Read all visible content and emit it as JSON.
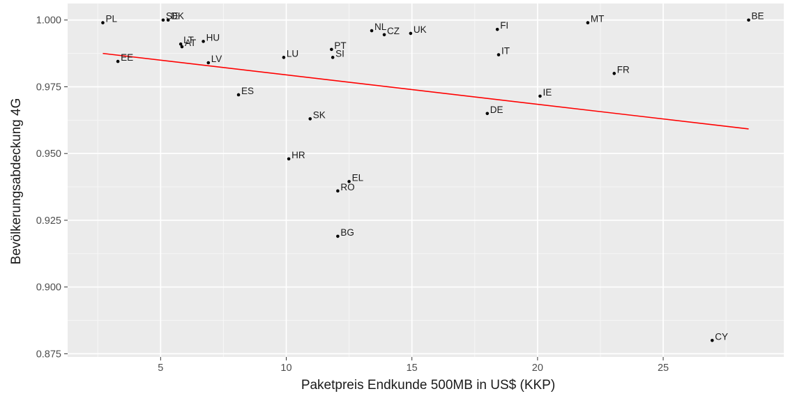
{
  "chart_data": {
    "type": "scatter",
    "xlabel": "Paketpreis Endkunde 500MB in US$ (KKP)",
    "ylabel": "Bevölkerungsabdeckung 4G",
    "xlim": [
      1.3,
      29.8
    ],
    "ylim": [
      0.8738,
      1.0062
    ],
    "x_ticks": [
      5,
      10,
      15,
      20,
      25
    ],
    "x_tick_labels": [
      "5",
      "10",
      "15",
      "20",
      "25"
    ],
    "y_ticks": [
      0.875,
      0.9,
      0.925,
      0.95,
      0.975,
      1.0
    ],
    "y_tick_labels": [
      "0.875",
      "0.900",
      "0.925",
      "0.950",
      "0.975",
      "1.000"
    ],
    "grid": true,
    "background_color": "#ebebeb",
    "trend_line_color": "#ff0000",
    "point_color": "#000000",
    "points": [
      {
        "label": "PL",
        "x": 2.7,
        "y": 0.999
      },
      {
        "label": "SE",
        "x": 5.1,
        "y": 1.0
      },
      {
        "label": "DK",
        "x": 5.3,
        "y": 1.0
      },
      {
        "label": "LT",
        "x": 5.8,
        "y": 0.991
      },
      {
        "label": "AT",
        "x": 5.85,
        "y": 0.99
      },
      {
        "label": "HU",
        "x": 6.7,
        "y": 0.992
      },
      {
        "label": "EE",
        "x": 3.3,
        "y": 0.9845
      },
      {
        "label": "LV",
        "x": 6.9,
        "y": 0.984
      },
      {
        "label": "LU",
        "x": 9.9,
        "y": 0.986
      },
      {
        "label": "ES",
        "x": 8.1,
        "y": 0.972
      },
      {
        "label": "SK",
        "x": 10.95,
        "y": 0.963
      },
      {
        "label": "HR",
        "x": 10.1,
        "y": 0.948
      },
      {
        "label": "PT",
        "x": 11.8,
        "y": 0.989
      },
      {
        "label": "SI",
        "x": 11.85,
        "y": 0.986
      },
      {
        "label": "NL",
        "x": 13.4,
        "y": 0.996
      },
      {
        "label": "CZ",
        "x": 13.9,
        "y": 0.9945
      },
      {
        "label": "UK",
        "x": 14.95,
        "y": 0.995
      },
      {
        "label": "EL",
        "x": 12.5,
        "y": 0.9395
      },
      {
        "label": "RO",
        "x": 12.05,
        "y": 0.936
      },
      {
        "label": "BG",
        "x": 12.05,
        "y": 0.919
      },
      {
        "label": "FI",
        "x": 18.4,
        "y": 0.9965
      },
      {
        "label": "IT",
        "x": 18.45,
        "y": 0.987
      },
      {
        "label": "DE",
        "x": 18.0,
        "y": 0.965
      },
      {
        "label": "IE",
        "x": 20.1,
        "y": 0.9715
      },
      {
        "label": "MT",
        "x": 22.0,
        "y": 0.999
      },
      {
        "label": "FR",
        "x": 23.05,
        "y": 0.98
      },
      {
        "label": "BE",
        "x": 28.4,
        "y": 1.0
      },
      {
        "label": "CY",
        "x": 26.95,
        "y": 0.88
      }
    ],
    "trend_line": {
      "x": [
        2.7,
        28.4
      ],
      "y": [
        0.9875,
        0.9592
      ]
    }
  }
}
